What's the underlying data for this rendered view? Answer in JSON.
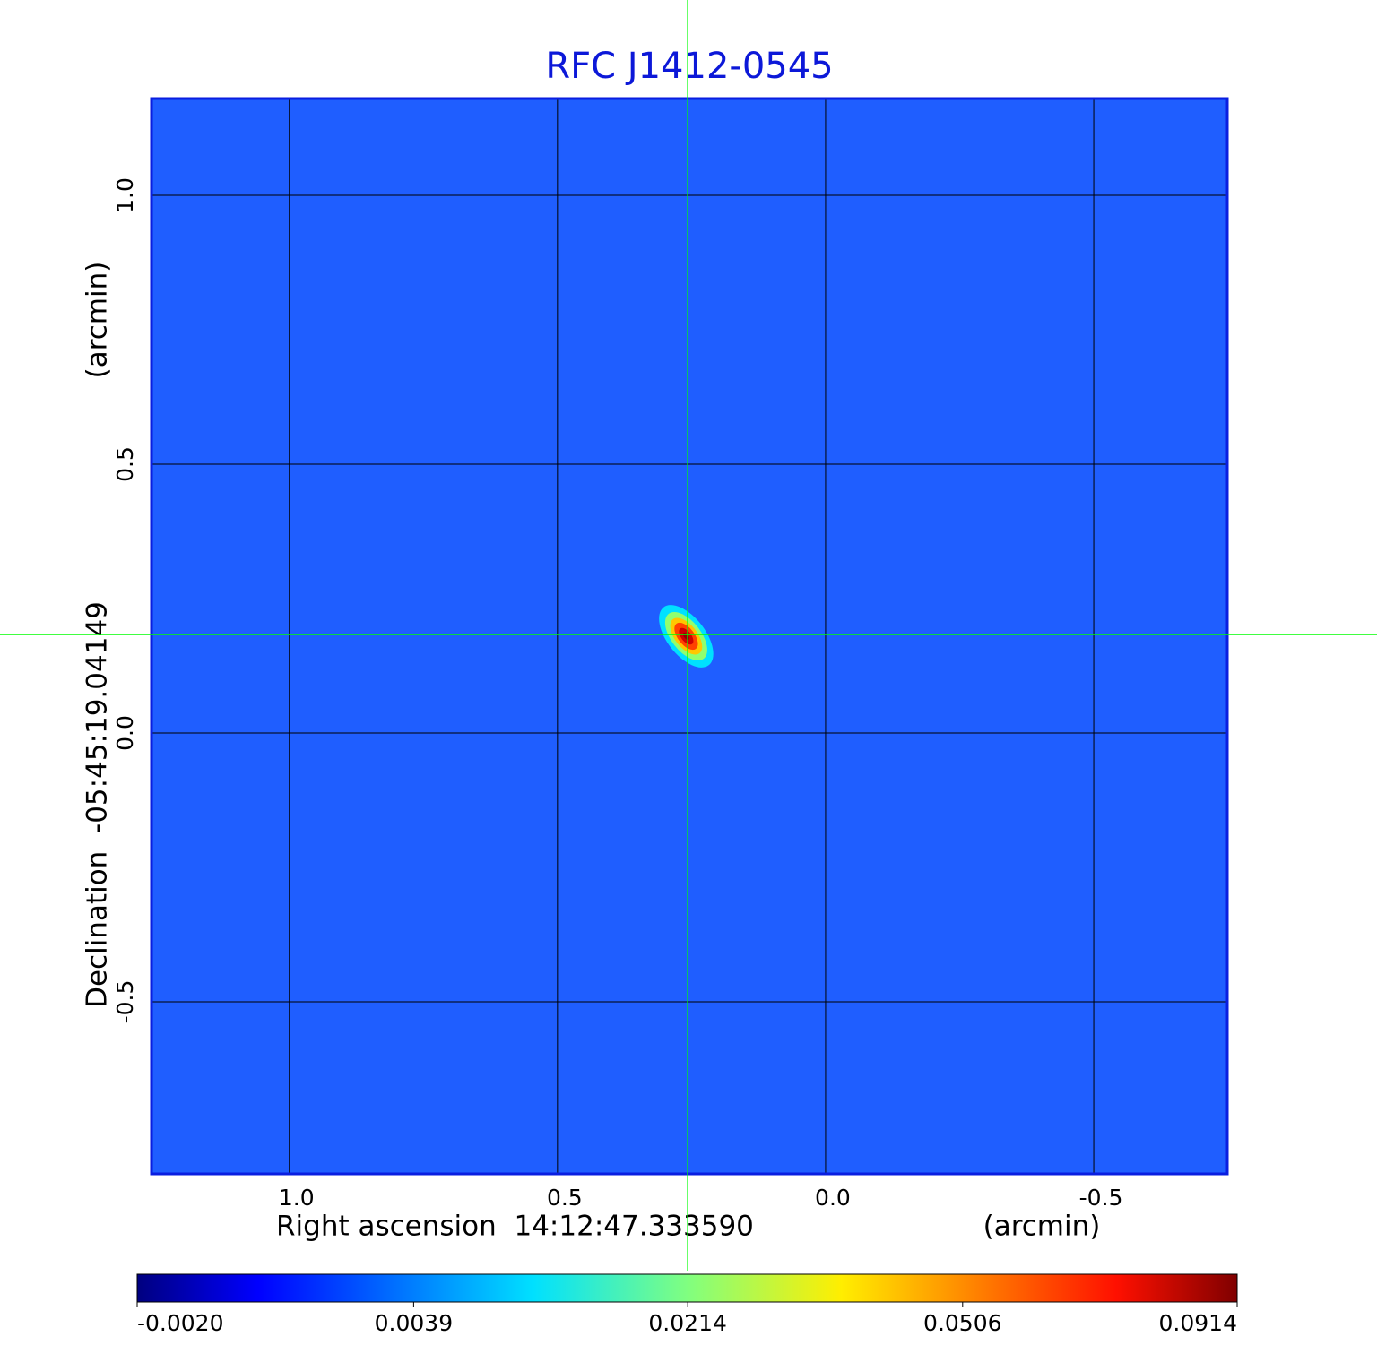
{
  "chart_data": {
    "type": "image",
    "title": "RFC J1412-0545",
    "xlabel": "Right ascension  14:12:47.333590",
    "xunit": "(arcmin)",
    "ylabel": "Declination  -05:45:19.04149",
    "yunit": "(arcmin)",
    "xlim": [
      1.257,
      -0.749
    ],
    "ylim": [
      -0.82,
      1.18
    ],
    "xticks": [
      {
        "value": 1,
        "label": "1.0"
      },
      0.5,
      {
        "value": 0,
        "label": "0.0"
      },
      -0.5
    ],
    "yticks": [
      {
        "value": 1,
        "label": "1.0"
      },
      0.5,
      {
        "value": 0,
        "label": "0.0"
      },
      -0.5
    ],
    "grid": true,
    "colormap": "jet",
    "color_scale": "sqrt",
    "clim": [
      -0.002,
      0.0914
    ],
    "colorbar_ticks": [
      {
        "value": -0.002,
        "label": "-0.0020"
      },
      {
        "value": 0.0039,
        "label": "0.0039"
      },
      {
        "value": 0.0214,
        "label": "0.0214"
      },
      {
        "value": 0.0506,
        "label": "0.0506"
      },
      {
        "value": 0.0914,
        "label": "0.0914"
      }
    ],
    "source": {
      "x": 0.26,
      "y": 0.18,
      "peak": 0.0914
    },
    "crosshair": {
      "x": 0.2575,
      "y": 0.183
    }
  }
}
